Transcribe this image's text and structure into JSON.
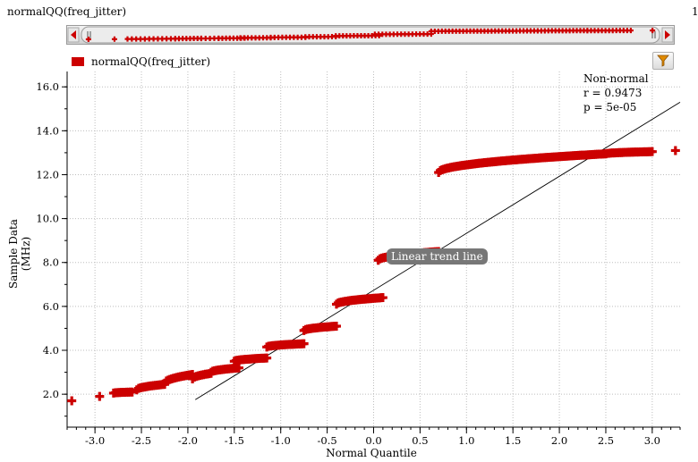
{
  "window": {
    "title": "normalQQ(freq_jitter)",
    "right_marker": "1"
  },
  "legend": {
    "label": "normalQQ(freq_jitter)",
    "color": "#cc0000"
  },
  "toolbar": {
    "filter_icon": "filter-funnel-icon"
  },
  "annotation": {
    "line1": "Non-normal",
    "line2": "r  = 0.9473",
    "line3": "p  = 5e-05"
  },
  "trend_label": "Linear trend line",
  "chart_data": {
    "type": "scatter",
    "xlabel": "Normal Quantile",
    "ylabel": "Sample Data (MHz)",
    "xlim": [
      -3.3,
      3.3
    ],
    "ylim": [
      0.5,
      16.7
    ],
    "xticks": [
      "-3.0",
      "-2.5",
      "-2.0",
      "-1.5",
      "-1.0",
      "-0.5",
      "0.0",
      "0.5",
      "1.0",
      "1.5",
      "2.0",
      "2.5",
      "3.0"
    ],
    "yticks": [
      "2.0",
      "4.0",
      "6.0",
      "8.0",
      "10.0",
      "12.0",
      "14.0",
      "16.0"
    ],
    "grid": true,
    "marker": "plus",
    "series": [
      {
        "name": "normalQQ(freq_jitter)",
        "color": "#cc0000",
        "clusters": [
          {
            "x": [
              -3.25,
              -3.25
            ],
            "y": [
              1.7,
              1.7
            ]
          },
          {
            "x": [
              -2.95,
              -2.95
            ],
            "y": [
              1.9,
              1.9
            ]
          },
          {
            "x": [
              -2.8,
              -2.6
            ],
            "y": [
              2.05,
              2.1
            ]
          },
          {
            "x": [
              -2.55,
              -2.25
            ],
            "y": [
              2.2,
              2.45
            ]
          },
          {
            "x": [
              -2.25,
              -1.95
            ],
            "y": [
              2.5,
              2.9
            ]
          },
          {
            "x": [
              -1.95,
              -1.75
            ],
            "y": [
              2.7,
              2.95
            ]
          },
          {
            "x": [
              -1.75,
              -1.45
            ],
            "y": [
              3.0,
              3.2
            ]
          },
          {
            "x": [
              -1.5,
              -1.15
            ],
            "y": [
              3.5,
              3.65
            ]
          },
          {
            "x": [
              -1.15,
              -0.75
            ],
            "y": [
              4.15,
              4.3
            ]
          },
          {
            "x": [
              -0.75,
              -0.4
            ],
            "y": [
              4.9,
              5.1
            ]
          },
          {
            "x": [
              -0.4,
              0.1
            ],
            "y": [
              6.1,
              6.4
            ]
          },
          {
            "x": [
              0.05,
              0.7
            ],
            "y": [
              8.1,
              8.5
            ]
          },
          {
            "x": [
              0.7,
              2.5
            ],
            "y": [
              12.1,
              12.95
            ]
          },
          {
            "x": [
              2.5,
              3.0
            ],
            "y": [
              12.95,
              13.05
            ]
          },
          {
            "x": [
              3.25,
              3.25
            ],
            "y": [
              13.1,
              13.1
            ]
          }
        ]
      }
    ],
    "trend_line": {
      "x": [
        -1.92,
        3.3
      ],
      "y": [
        1.75,
        15.3
      ]
    }
  }
}
